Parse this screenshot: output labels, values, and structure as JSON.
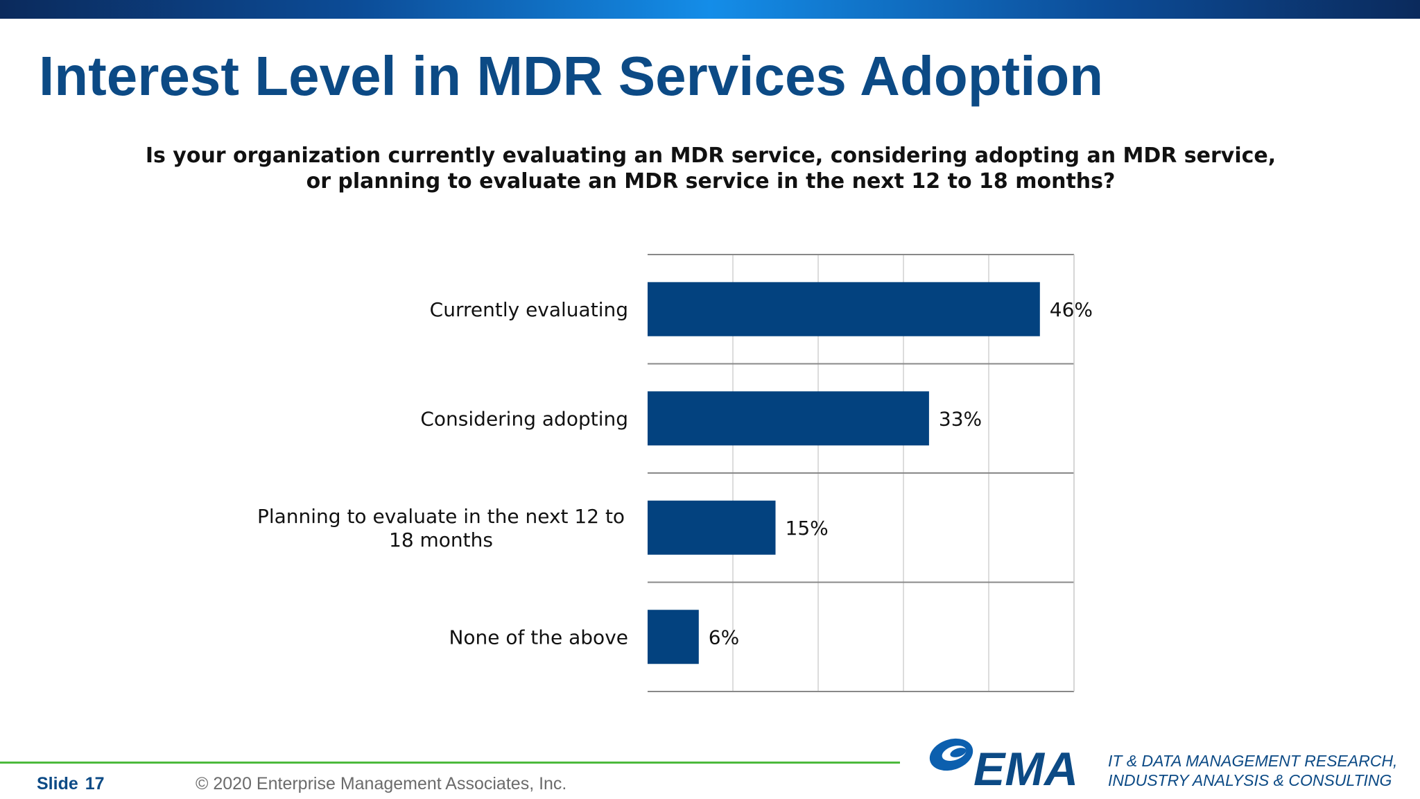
{
  "slide": {
    "title": "Interest Level in MDR Services Adoption",
    "question": "Is your organization currently evaluating an MDR service, considering adopting an MDR service, or planning to evaluate an MDR service in the next 12 to 18 months?"
  },
  "chart_data": {
    "type": "bar",
    "orientation": "horizontal",
    "categories": [
      "Currently evaluating",
      "Considering adopting",
      "Planning to evaluate in the next 12 to 18 months",
      "None of the above"
    ],
    "category_lines": [
      [
        "Currently evaluating"
      ],
      [
        "Considering adopting"
      ],
      [
        "Planning to evaluate in the next 12 to",
        "18 months"
      ],
      [
        "None of the above"
      ]
    ],
    "values": [
      46,
      33,
      15,
      6
    ],
    "value_labels": [
      "46%",
      "33%",
      "15%",
      "6%"
    ],
    "xlim": [
      0,
      50
    ],
    "grid": true,
    "bar_color": "#03427f"
  },
  "footer": {
    "slide_label": "Slide",
    "slide_number": "17",
    "copyright": "© 2020  Enterprise Management Associates, Inc.",
    "logo_text": "EMA",
    "tagline_line1": "IT & DATA MANAGEMENT RESEARCH,",
    "tagline_line2": "INDUSTRY ANALYSIS & CONSULTING"
  },
  "colors": {
    "title": "#0c4a85",
    "accent_line": "#4cba3c"
  }
}
